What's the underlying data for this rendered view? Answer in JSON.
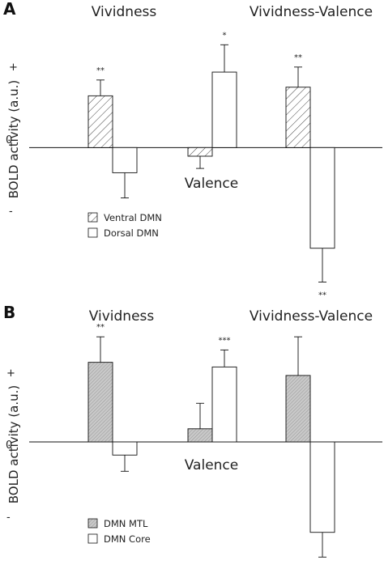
{
  "chart_data": [
    {
      "type": "bar",
      "panel": "A",
      "ylabel": "BOLD activity (a.u.)",
      "yticks": [
        "+",
        "0",
        "-"
      ],
      "categories": [
        "Vividness",
        "Valence",
        "Vividness-Valence"
      ],
      "series": [
        {
          "name": "Ventral DMN",
          "pattern": "hatch",
          "values": [
            0.72,
            -0.12,
            0.84
          ],
          "errors": [
            0.22,
            0.17,
            0.28
          ],
          "sig": [
            "**",
            "",
            "**"
          ]
        },
        {
          "name": "Dorsal DMN",
          "pattern": "white",
          "values": [
            -0.35,
            1.05,
            -1.4
          ],
          "errors": [
            0.35,
            0.38,
            0.47
          ],
          "sig": [
            "",
            "*",
            "**"
          ]
        }
      ],
      "ylim": [
        -2.0,
        1.85
      ]
    },
    {
      "type": "bar",
      "panel": "B",
      "ylabel": "BOLD activity (a.u.)",
      "yticks": [
        "+",
        "0",
        "-"
      ],
      "categories": [
        "Vividness",
        "Valence",
        "Vividness-Valence"
      ],
      "series": [
        {
          "name": "DMN MTL",
          "pattern": "gray",
          "values": [
            1.03,
            0.17,
            0.86
          ],
          "errors": [
            0.33,
            0.33,
            0.5
          ],
          "sig": [
            "**",
            "",
            ""
          ]
        },
        {
          "name": "DMN Core",
          "pattern": "white",
          "values": [
            -0.17,
            0.97,
            -1.17
          ],
          "errors": [
            0.21,
            0.22,
            0.32
          ],
          "sig": [
            "",
            "***",
            "**"
          ]
        }
      ],
      "ylim": [
        -1.55,
        1.55
      ]
    }
  ]
}
